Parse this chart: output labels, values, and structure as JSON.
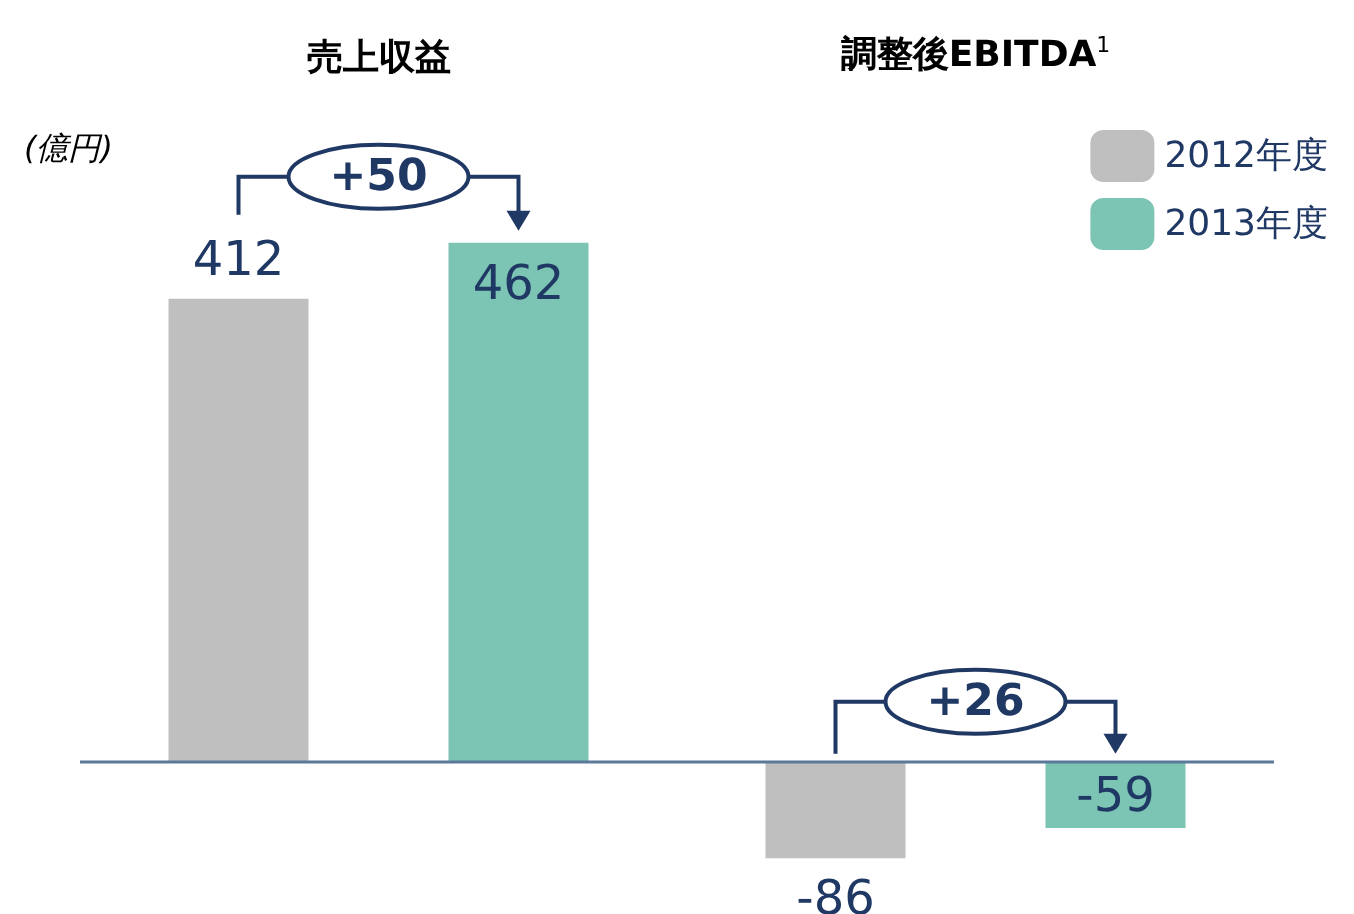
{
  "chart_data": {
    "type": "bar",
    "ylabel": "(億円)",
    "categories": [
      "売上収益",
      "調整後EBITDA$^{1}$"
    ],
    "series": [
      {
        "name": "2012年度",
        "color": "#bfbfbf",
        "values": [
          412,
          -86
        ]
      },
      {
        "name": "2013年度",
        "color": "#7cc4b4",
        "values": [
          462,
          -59
        ]
      }
    ],
    "ref_lines": [
      {
        "axis": "y",
        "value": 0,
        "color": "#5b7a99"
      }
    ],
    "tick_labels": "x",
    "data_labels": true,
    "legend": "top right",
    "annotations": [
      "+50",
      "+26"
    ]
  }
}
